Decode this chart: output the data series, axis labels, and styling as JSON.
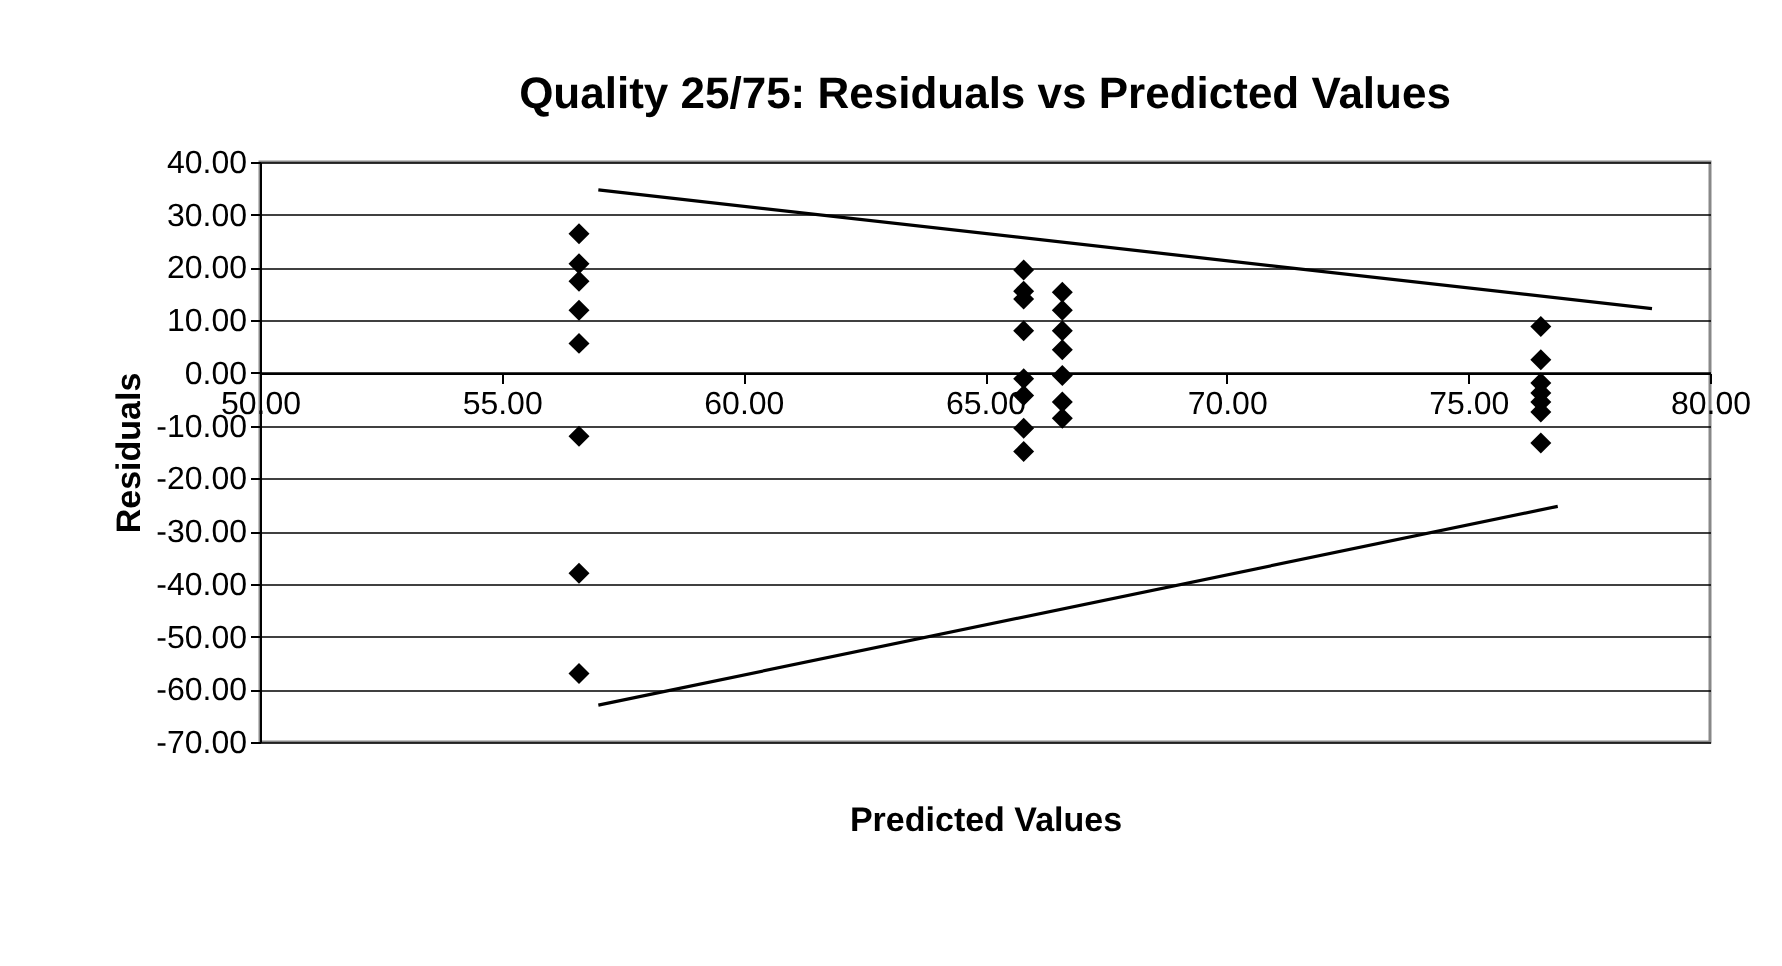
{
  "chart_data": {
    "type": "scatter",
    "title": "Quality 25/75: Residuals vs Predicted Values",
    "xlabel": "Predicted Values",
    "ylabel": "Residuals",
    "xlim": [
      50,
      80
    ],
    "xticks": [
      {
        "value": 50,
        "label": "50.00"
      },
      {
        "value": 55,
        "label": "55.00"
      },
      {
        "value": 60,
        "label": "60.00"
      },
      {
        "value": 65,
        "label": "65.00"
      },
      {
        "value": 70,
        "label": "70.00"
      },
      {
        "value": 75,
        "label": "75.00"
      },
      {
        "value": 80,
        "label": "80.00"
      }
    ],
    "ylim": [
      -70,
      40
    ],
    "yticks": [
      {
        "value": -70,
        "label": "-70.00"
      },
      {
        "value": -60,
        "label": "-60.00"
      },
      {
        "value": -50,
        "label": "-50.00"
      },
      {
        "value": -40,
        "label": "-40.00"
      },
      {
        "value": -30,
        "label": "-30.00"
      },
      {
        "value": -20,
        "label": "-20.00"
      },
      {
        "value": -10,
        "label": "-10.00"
      },
      {
        "value": 0,
        "label": "0.00"
      },
      {
        "value": 10,
        "label": "10.00"
      },
      {
        "value": 20,
        "label": "20.00"
      },
      {
        "value": 30,
        "label": "30.00"
      },
      {
        "value": 40,
        "label": "40.00"
      }
    ],
    "grid": "y",
    "marker": "diamond",
    "series": [
      {
        "color": "#000000",
        "x": [
          56.6,
          56.6,
          56.6,
          56.6,
          56.6,
          56.6,
          56.6,
          56.6,
          65.8,
          65.8,
          65.8,
          65.8,
          65.8,
          65.8,
          65.8,
          65.8,
          66.6,
          66.6,
          66.6,
          66.6,
          66.6,
          66.6,
          66.6,
          76.5,
          76.5,
          76.5,
          76.5,
          76.5,
          76.5,
          76.5
        ],
        "values": [
          26.4,
          20.7,
          17.4,
          11.9,
          5.6,
          -12,
          -38,
          -57,
          19.5,
          15.5,
          14,
          8,
          -1.1,
          -4.3,
          -10.5,
          -14.9,
          15.3,
          11.9,
          8,
          4.4,
          -0.5,
          -5.5,
          -8.6,
          8.8,
          2.5,
          -1.9,
          -3.8,
          -5.5,
          -7.4,
          -13.3
        ]
      },
      {
        "type": "line",
        "marker": "none",
        "color": "#000000",
        "x": [
          57.0,
          78.8
        ],
        "values": [
          34.7,
          12.2
        ]
      },
      {
        "type": "line",
        "marker": "none",
        "color": "#000000",
        "x": [
          57.0,
          76.85
        ],
        "values": [
          -63,
          -25.3
        ]
      }
    ]
  }
}
